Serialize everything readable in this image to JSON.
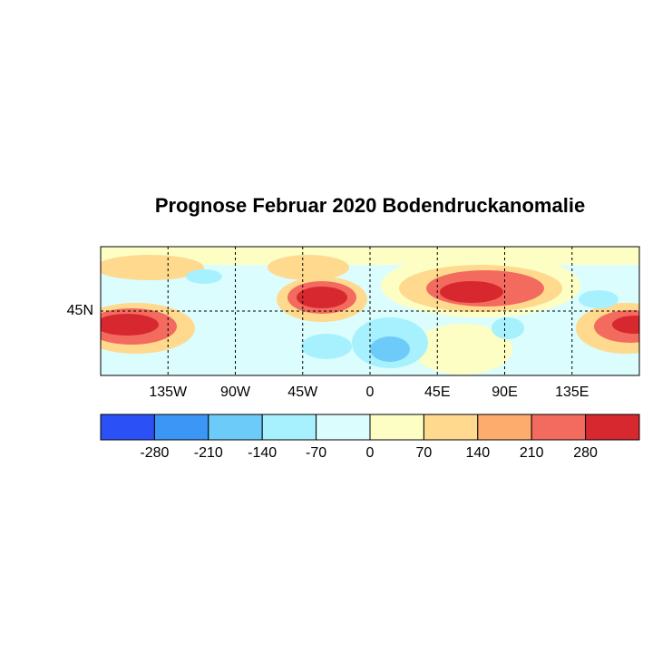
{
  "chart_data": {
    "type": "map",
    "title": "Prognose Februar 2020 Bodendruckanomalie",
    "xlim": [
      -180,
      180
    ],
    "ylim": [
      2,
      88
    ],
    "xticks": [
      {
        "value": -135,
        "label": "135W"
      },
      {
        "value": -90,
        "label": "90W"
      },
      {
        "value": -45,
        "label": "45W"
      },
      0,
      {
        "value": 45,
        "label": "45E"
      },
      {
        "value": 90,
        "label": "90E"
      },
      {
        "value": 135,
        "label": "135E"
      }
    ],
    "yticks": [
      {
        "value": 45,
        "label": "45N"
      }
    ],
    "grid": true,
    "colorbar": {
      "ticks": [
        -280,
        -210,
        -140,
        -70,
        0,
        70,
        140,
        210,
        280
      ],
      "colors": [
        "#2b50f6",
        "#3c96f5",
        "#6dcbf9",
        "#a6f1fd",
        "#dcfdfd",
        "#fdfec4",
        "#fed98e",
        "#feab6e",
        "#f26b5e",
        "#d7282f"
      ]
    }
  }
}
